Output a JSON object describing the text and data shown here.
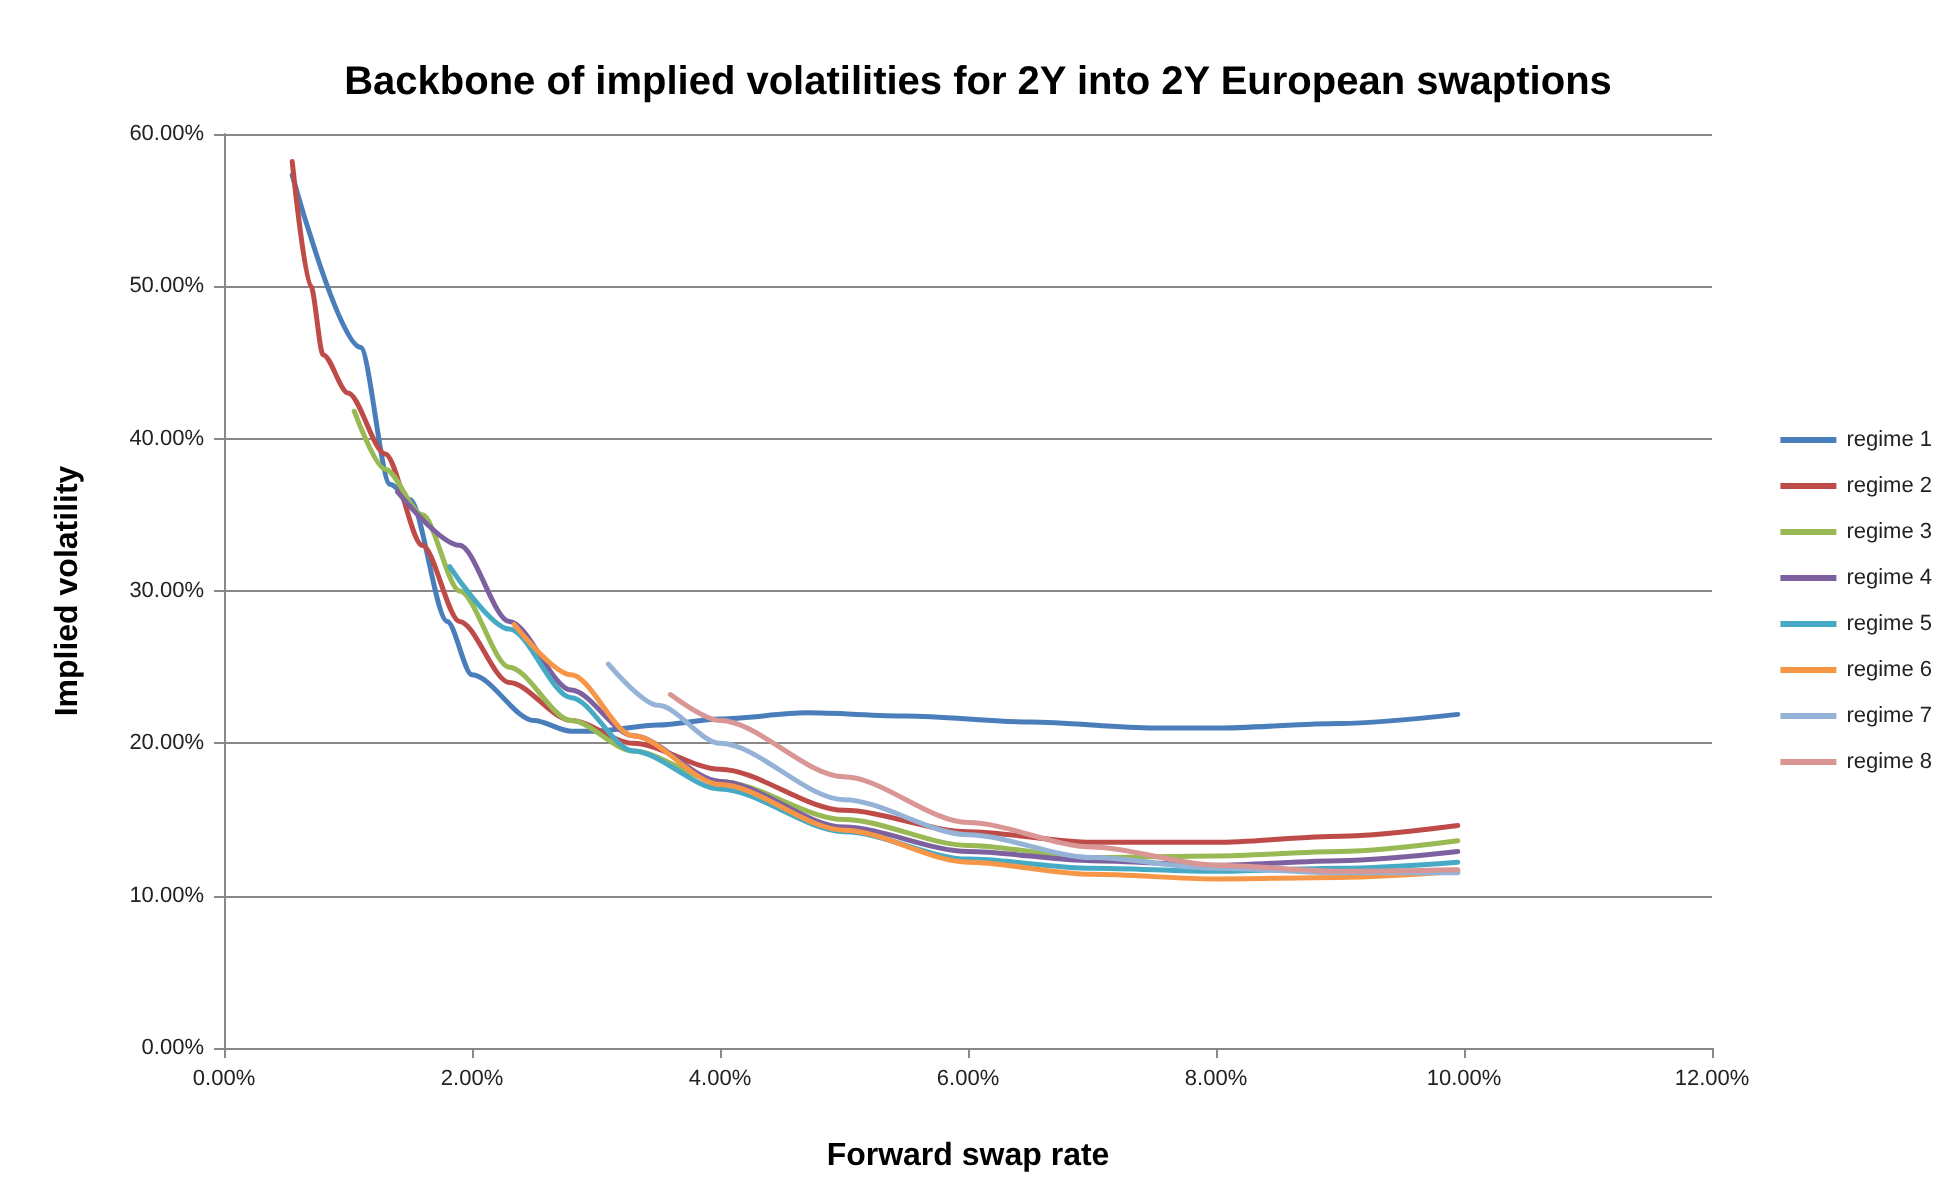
{
  "chart_data": {
    "type": "line",
    "title": "Backbone of implied volatilities for 2Y into 2Y European swaptions",
    "xlabel": "Forward swap rate",
    "ylabel": "Implied volatility",
    "xlim": [
      0,
      12
    ],
    "xticks": [
      {
        "value": 0,
        "label": "0.00%"
      },
      {
        "value": 2,
        "label": "2.00%"
      },
      {
        "value": 4,
        "label": "4.00%"
      },
      {
        "value": 6,
        "label": "6.00%"
      },
      {
        "value": 8,
        "label": "8.00%"
      },
      {
        "value": 10,
        "label": "10.00%"
      },
      {
        "value": 12,
        "label": "12.00%"
      }
    ],
    "ylim": [
      0,
      60
    ],
    "yticks": [
      {
        "value": 0,
        "label": "0.00%"
      },
      {
        "value": 10,
        "label": "10.00%"
      },
      {
        "value": 20,
        "label": "20.00%"
      },
      {
        "value": 30,
        "label": "30.00%"
      },
      {
        "value": 40,
        "label": "40.00%"
      },
      {
        "value": 50,
        "label": "50.00%"
      },
      {
        "value": 60,
        "label": "60.00%"
      }
    ],
    "grid": "y",
    "legend": "right",
    "marker": "none",
    "line_style": "solid",
    "series": [
      {
        "name": "regime 1",
        "color": "#4a7ebb",
        "x": [
          0.55,
          1.1,
          1.34,
          1.5,
          1.8,
          2.0,
          2.5,
          2.8,
          3.0,
          3.5,
          4.0,
          4.7,
          5.5,
          6.5,
          7.5,
          8.0,
          9.0,
          9.95
        ],
        "values": [
          57.3,
          46,
          37,
          36,
          28,
          24.5,
          21.5,
          20.8,
          20.8,
          21.2,
          21.6,
          22.0,
          21.8,
          21.4,
          21.0,
          21.0,
          21.3,
          21.9
        ]
      },
      {
        "name": "regime 2",
        "color": "#be4b48",
        "x": [
          0.55,
          0.7,
          0.8,
          1.0,
          1.3,
          1.6,
          1.9,
          2.3,
          2.8,
          3.3,
          4.0,
          5.0,
          6.0,
          7.0,
          8.0,
          9.0,
          9.95
        ],
        "values": [
          58.2,
          50,
          45.5,
          43,
          39,
          33,
          28,
          24,
          21.5,
          20,
          18.3,
          15.6,
          14.2,
          13.5,
          13.5,
          13.9,
          14.6
        ]
      },
      {
        "name": "regime 3",
        "color": "#98b954",
        "x": [
          1.05,
          1.3,
          1.6,
          1.9,
          2.3,
          2.8,
          3.3,
          4.0,
          5.0,
          6.0,
          7.0,
          8.0,
          9.0,
          9.95
        ],
        "values": [
          41.8,
          38,
          35,
          30,
          25,
          21.5,
          19.5,
          17.5,
          15,
          13.3,
          12.5,
          12.6,
          12.9,
          13.6
        ]
      },
      {
        "name": "regime 4",
        "color": "#7d60a0",
        "x": [
          1.4,
          1.9,
          2.3,
          2.8,
          3.3,
          4.0,
          5.0,
          6.0,
          7.0,
          8.0,
          9.0,
          9.95
        ],
        "values": [
          36.5,
          33,
          28,
          23.5,
          20.5,
          17.5,
          14.5,
          12.9,
          12.3,
          12.0,
          12.3,
          12.9
        ]
      },
      {
        "name": "regime 5",
        "color": "#46aac5",
        "x": [
          1.82,
          2.3,
          2.8,
          3.3,
          4.0,
          5.0,
          6.0,
          7.0,
          8.0,
          9.0,
          9.95
        ],
        "values": [
          31.6,
          27.5,
          23,
          19.5,
          17,
          14.2,
          12.4,
          11.8,
          11.6,
          11.8,
          12.2
        ]
      },
      {
        "name": "regime 6",
        "color": "#f79646",
        "x": [
          2.34,
          2.8,
          3.3,
          4.0,
          5.0,
          6.0,
          7.0,
          8.0,
          9.0,
          9.95
        ],
        "values": [
          27.8,
          24.5,
          20.5,
          17.3,
          14.3,
          12.2,
          11.4,
          11.1,
          11.2,
          11.6
        ]
      },
      {
        "name": "regime 7",
        "color": "#95b3d7",
        "x": [
          3.1,
          3.5,
          4.0,
          5.0,
          6.0,
          7.0,
          8.0,
          9.0,
          9.95
        ],
        "values": [
          25.2,
          22.5,
          20,
          16.3,
          14.0,
          12.5,
          11.8,
          11.5,
          11.5
        ]
      },
      {
        "name": "regime 8",
        "color": "#d99694",
        "x": [
          3.6,
          4.0,
          5.0,
          6.0,
          7.0,
          8.0,
          9.0,
          9.95
        ],
        "values": [
          23.2,
          21.5,
          17.8,
          14.8,
          13.2,
          12.0,
          11.6,
          11.7
        ]
      }
    ]
  }
}
